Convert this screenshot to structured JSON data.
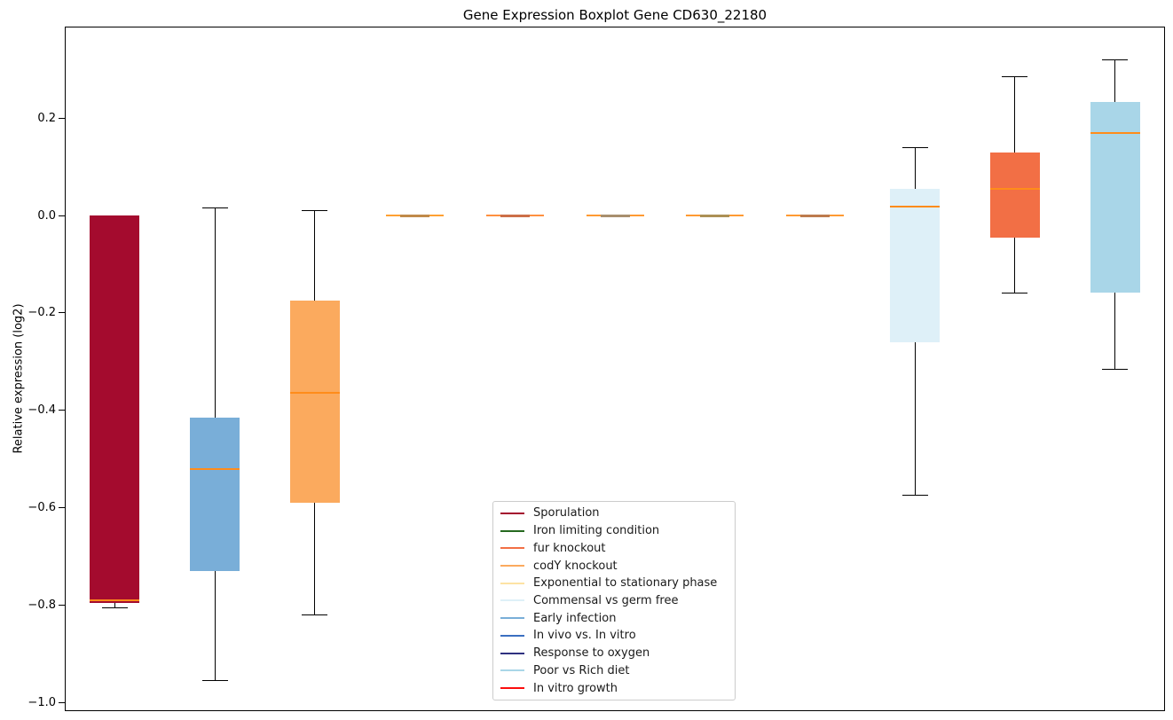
{
  "title": "Gene Expression Boxplot Gene CD630_22180",
  "ylabel": "Relative expression (log2)",
  "colors": {
    "median_line": "#ff8c1a",
    "whisker": "#000000",
    "frame": "#000000",
    "legend_border": "#cccccc",
    "background": "#ffffff"
  },
  "chart_data": {
    "type": "boxplot",
    "title": "Gene Expression Boxplot Gene CD630_22180",
    "ylabel": "Relative expression (log2)",
    "xlabel": "",
    "grid": false,
    "legend_position": "inside lower-center",
    "ylim": [
      -1.018,
      0.388
    ],
    "yticks": [
      0.2,
      0.0,
      -0.2,
      -0.4,
      -0.6,
      -0.8,
      -1.0
    ],
    "boxes": [
      {
        "label": "Sporulation",
        "color": "#a40b2e",
        "whisker_low": -0.805,
        "q1": -0.795,
        "median": -0.79,
        "q3": 0.0,
        "whisker_high": 0.0
      },
      {
        "label": "Early infection",
        "color": "#79aed8",
        "whisker_low": -0.955,
        "q1": -0.73,
        "median": -0.52,
        "q3": -0.415,
        "whisker_high": 0.015
      },
      {
        "label": "codY knockout",
        "color": "#fbaa5e",
        "whisker_low": -0.82,
        "q1": -0.59,
        "median": -0.365,
        "q3": -0.175,
        "whisker_high": 0.01
      },
      {
        "label": "Exponential to stationary phase",
        "collapsed": true,
        "core_color": "#c08a4a",
        "line_color": "#ffa033",
        "whisker_low": 0.0,
        "q1": 0.0,
        "median": 0.0,
        "q3": 0.0,
        "whisker_high": 0.0
      },
      {
        "label": "In vitro growth",
        "collapsed": true,
        "core_color": "#cc6f48",
        "line_color": "#ff9040",
        "whisker_low": 0.0,
        "q1": 0.0,
        "median": 0.0,
        "q3": 0.0,
        "whisker_high": 0.0
      },
      {
        "label": "In vivo vs. In vitro",
        "collapsed": true,
        "core_color": "#a88f6e",
        "line_color": "#ff9a33",
        "whisker_low": 0.0,
        "q1": 0.0,
        "median": 0.0,
        "q3": 0.0,
        "whisker_high": 0.0
      },
      {
        "label": "Iron limiting condition",
        "collapsed": true,
        "core_color": "#ac9055",
        "line_color": "#ff9a33",
        "whisker_low": 0.0,
        "q1": 0.0,
        "median": 0.0,
        "q3": 0.0,
        "whisker_high": 0.0
      },
      {
        "label": "Response to oxygen",
        "collapsed": true,
        "core_color": "#bd7b4e",
        "line_color": "#ff9a33",
        "whisker_low": 0.0,
        "q1": 0.0,
        "median": 0.0,
        "q3": 0.0,
        "whisker_high": 0.0
      },
      {
        "label": "Commensal vs germ free",
        "color": "#def0f8",
        "whisker_low": -0.575,
        "q1": -0.26,
        "median": 0.018,
        "q3": 0.055,
        "whisker_high": 0.14
      },
      {
        "label": "fur knockout",
        "color": "#f26f45",
        "whisker_low": -0.16,
        "q1": -0.046,
        "median": 0.055,
        "q3": 0.13,
        "whisker_high": 0.285
      },
      {
        "label": "Poor vs Rich diet",
        "color": "#a9d6e8",
        "whisker_low": -0.315,
        "q1": -0.158,
        "median": 0.17,
        "q3": 0.233,
        "whisker_high": 0.32
      }
    ],
    "legend": [
      {
        "label": "Sporulation",
        "color": "#a40b2e"
      },
      {
        "label": "Iron limiting condition",
        "color": "#25691f"
      },
      {
        "label": "fur knockout",
        "color": "#f26f45"
      },
      {
        "label": "codY knockout",
        "color": "#fbaa5e"
      },
      {
        "label": "Exponential to stationary phase",
        "color": "#fde3a4"
      },
      {
        "label": "Commensal vs germ free",
        "color": "#def0f8"
      },
      {
        "label": "Early infection",
        "color": "#79aed8"
      },
      {
        "label": "In vivo vs. In vitro",
        "color": "#3b6fc0"
      },
      {
        "label": "Response to oxygen",
        "color": "#2f3180"
      },
      {
        "label": "Poor vs Rich diet",
        "color": "#a9d6e8"
      },
      {
        "label": "In vitro growth",
        "color": "#fb0d0d"
      }
    ]
  }
}
